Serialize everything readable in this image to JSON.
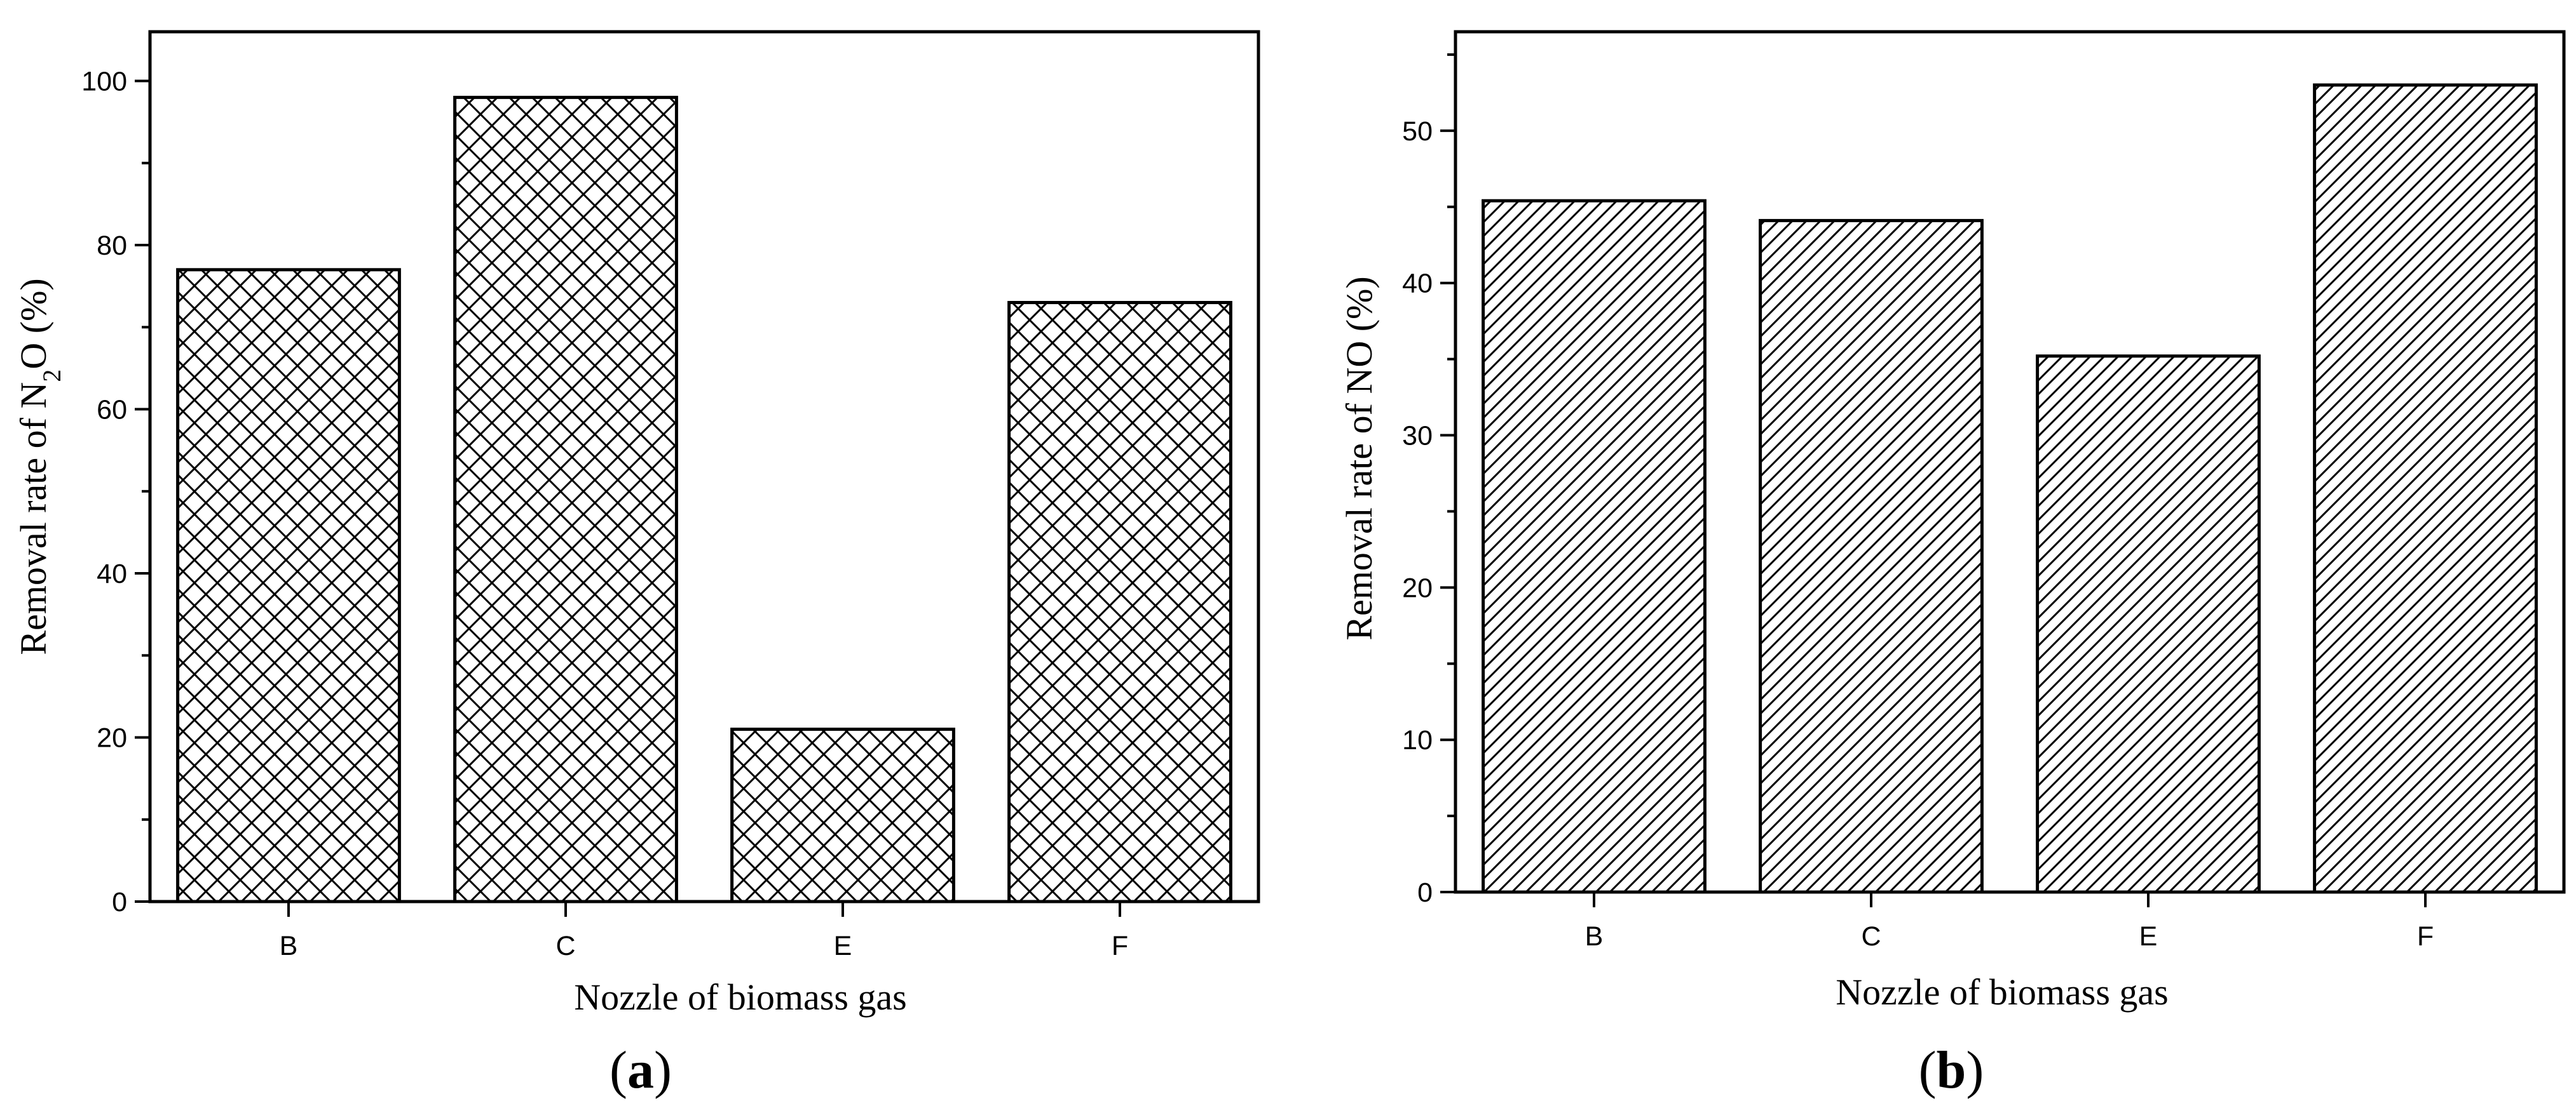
{
  "chart_data": [
    {
      "type": "bar",
      "panel_label": "a",
      "categories": [
        "B",
        "C",
        "E",
        "F"
      ],
      "values": [
        77,
        98,
        21,
        73
      ],
      "xlabel": "Nozzle of biomass gas",
      "ylabel_parts": [
        "Removal rate of  N",
        "2",
        "O (%)"
      ],
      "ylim": [
        0,
        106
      ],
      "yticks": [
        0,
        20,
        40,
        60,
        80,
        100
      ],
      "grid": false,
      "legend": "none",
      "fill_pattern": "crosshatch"
    },
    {
      "type": "bar",
      "panel_label": "b",
      "categories": [
        "B",
        "C",
        "E",
        "F"
      ],
      "values": [
        45.4,
        44.1,
        35.2,
        53
      ],
      "xlabel": "Nozzle of biomass gas",
      "ylabel": "Removal rate of NO (%)",
      "ylim": [
        0,
        56.5
      ],
      "yticks": [
        0,
        10,
        20,
        30,
        40,
        50
      ],
      "grid": false,
      "legend": "none",
      "fill_pattern": "diagonal-hatch"
    }
  ]
}
